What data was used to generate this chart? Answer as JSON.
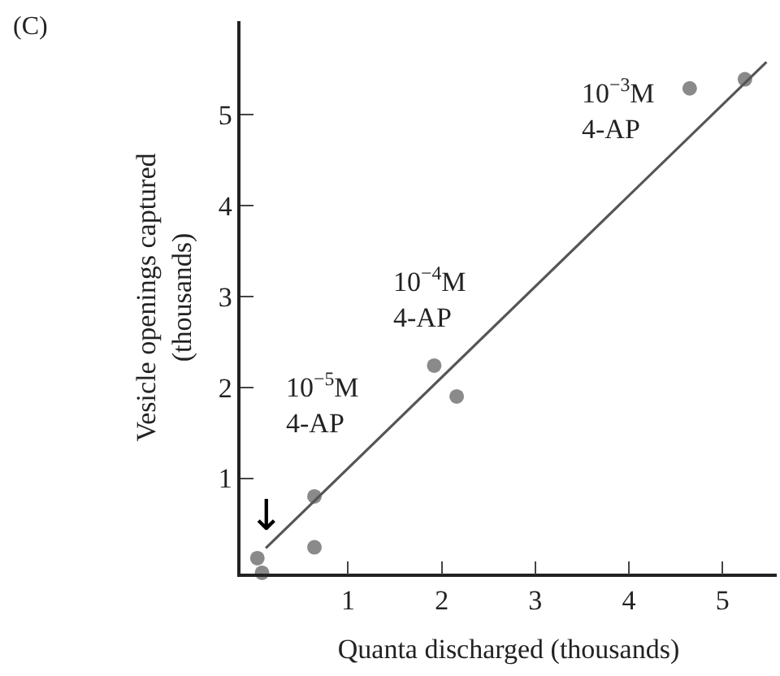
{
  "chart_data": {
    "type": "scatter",
    "xlabel": "Quanta discharged (thousands)",
    "ylabel": "Vesicle openings captured\n(thousands)",
    "xlim": [
      -0.15,
      5.58
    ],
    "ylim": [
      -0.05,
      6.03
    ],
    "xticks": [
      1,
      2,
      3,
      4,
      5
    ],
    "yticks": [
      1,
      2,
      3,
      4,
      5
    ],
    "marker": "circle",
    "series": [
      {
        "color": "#8a8a8a",
        "x": [
          0.03,
          0.08,
          0.64,
          0.64,
          1.92,
          2.16,
          4.65,
          5.24
        ],
        "values": [
          0.12,
          -0.04,
          0.8,
          0.24,
          2.24,
          1.9,
          5.29,
          5.39
        ]
      },
      {
        "type": "line",
        "color": "#555555",
        "x": [
          0.12,
          5.47
        ],
        "values": [
          0.23,
          5.58
        ],
        "line_style": "solid",
        "marker": "none"
      }
    ],
    "annotations": [
      "(C)",
      "10$^{−5}$M\n4-AP",
      "10$^{−4}$M\n4-AP",
      "10$^{−3}$M\n4-AP",
      {
        "text": "↓",
        "x": 0.12,
        "y": 0.23
      }
    ]
  }
}
